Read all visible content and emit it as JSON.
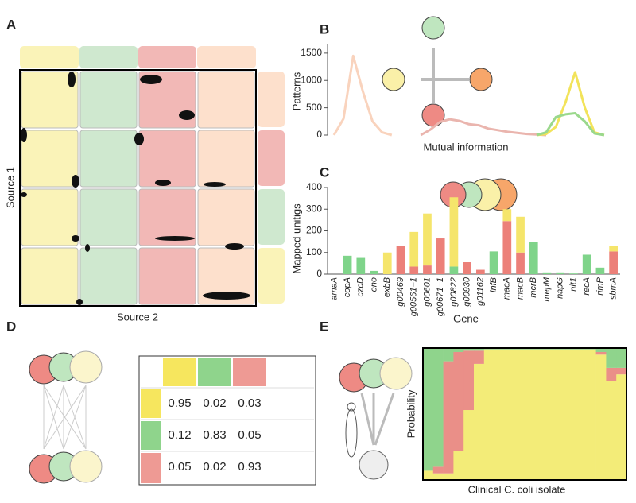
{
  "panel_labels": [
    "A",
    "B",
    "C",
    "D",
    "E"
  ],
  "panel_a": {
    "y_label": "Source 1",
    "x_label": "Source 2"
  },
  "table": {
    "rows": [
      [
        0.95,
        0.02,
        0.03
      ],
      [
        0.12,
        0.83,
        0.05
      ],
      [
        0.05,
        0.02,
        0.93
      ]
    ]
  },
  "chart_data": [
    {
      "type": "line",
      "y_label": "Patterns",
      "x_label": "Mutual information",
      "x": [
        0,
        1,
        2,
        3,
        4,
        5,
        6,
        7,
        8,
        9,
        10,
        11,
        12,
        13,
        14,
        15,
        16,
        17,
        18,
        19,
        20,
        21,
        22,
        23,
        24,
        25,
        26,
        27,
        28,
        29
      ],
      "xlim": [
        0,
        29
      ],
      "ylim": [
        0,
        1600
      ],
      "yticks": [
        0,
        500,
        1000,
        1500
      ],
      "series": [
        {
          "color": "#f9d3bd",
          "values": [
            0,
            300,
            1450,
            800,
            250,
            50,
            0,
            null,
            null,
            null,
            null,
            null,
            null,
            null,
            null,
            null,
            null,
            null,
            null,
            null,
            null,
            null,
            null,
            null,
            null,
            null,
            null,
            null,
            null,
            null
          ]
        },
        {
          "color": "#eab5ae",
          "values": [
            null,
            null,
            null,
            null,
            null,
            null,
            null,
            null,
            null,
            0,
            100,
            240,
            290,
            260,
            200,
            180,
            120,
            90,
            60,
            40,
            20,
            10,
            0,
            null,
            null,
            null,
            null,
            null,
            null,
            null
          ]
        },
        {
          "color": "#f2e35a",
          "values": [
            null,
            null,
            null,
            null,
            null,
            null,
            null,
            null,
            null,
            null,
            null,
            null,
            null,
            null,
            null,
            null,
            null,
            null,
            null,
            null,
            null,
            0,
            20,
            150,
            600,
            1150,
            500,
            50,
            0,
            null
          ]
        },
        {
          "color": "#9ad88c",
          "values": [
            null,
            null,
            null,
            null,
            null,
            null,
            null,
            null,
            null,
            null,
            null,
            null,
            null,
            null,
            null,
            null,
            null,
            null,
            null,
            null,
            null,
            0,
            50,
            330,
            380,
            400,
            250,
            30,
            0,
            null
          ]
        }
      ]
    },
    {
      "type": "stacked_bar",
      "y_label": "Mapped unitigs",
      "x_label": "Gene",
      "categories": [
        "amaA",
        "copA",
        "czcD",
        "eno",
        "exbB",
        "g00469",
        "g00561−1",
        "g00601",
        "g00671−1",
        "g00822",
        "g00930",
        "g01162",
        "infB",
        "macA",
        "macB",
        "mcrB",
        "mepM",
        "napG",
        "nit1",
        "recA",
        "rimP",
        "sbmA"
      ],
      "ylim": [
        0,
        400
      ],
      "yticks": [
        0,
        100,
        200,
        300,
        400
      ],
      "series": [
        {
          "color": "#ec8079",
          "values": [
            0,
            0,
            0,
            0,
            0,
            130,
            35,
            40,
            165,
            0,
            55,
            20,
            0,
            245,
            100,
            0,
            0,
            0,
            0,
            0,
            0,
            105
          ]
        },
        {
          "color": "#7fd48a",
          "values": [
            0,
            85,
            75,
            15,
            0,
            0,
            0,
            0,
            0,
            35,
            0,
            0,
            105,
            0,
            0,
            148,
            8,
            8,
            3,
            90,
            30,
            0
          ]
        },
        {
          "color": "#f5e56b",
          "values": [
            0,
            0,
            0,
            0,
            100,
            0,
            160,
            240,
            0,
            320,
            0,
            0,
            0,
            55,
            165,
            0,
            0,
            0,
            0,
            0,
            0,
            25
          ]
        }
      ]
    },
    {
      "type": "stacked_prob",
      "y_label": "Probability",
      "x_label": "Clinical C. coli isolate",
      "ylim": [
        0,
        1
      ],
      "categories": [
        null,
        null,
        null,
        null,
        null,
        null,
        null,
        null,
        null,
        null,
        null,
        null,
        null,
        null,
        null,
        null,
        null,
        null,
        null,
        null
      ],
      "series": [
        {
          "color": "#f3ec78",
          "values": [
            0.07,
            0.05,
            0.05,
            0.22,
            0.53,
            0.88,
            0.99,
            0.99,
            0.99,
            0.99,
            0.99,
            0.99,
            0.99,
            0.99,
            0.99,
            0.99,
            0.99,
            0.95,
            0.75,
            0.8
          ]
        },
        {
          "color": "#ea8f88",
          "values": [
            0,
            0.05,
            0.85,
            0.75,
            0.45,
            0.1,
            0,
            0,
            0,
            0,
            0,
            0,
            0,
            0,
            0,
            0,
            0,
            0.02,
            0.1,
            0.05
          ]
        },
        {
          "color": "#8fd48c",
          "values": [
            0.93,
            0.9,
            0.1,
            0.03,
            0.02,
            0.02,
            0.01,
            0.01,
            0.01,
            0.01,
            0.01,
            0.01,
            0.01,
            0.01,
            0.01,
            0.01,
            0.01,
            0.03,
            0.15,
            0.15
          ]
        }
      ]
    }
  ]
}
